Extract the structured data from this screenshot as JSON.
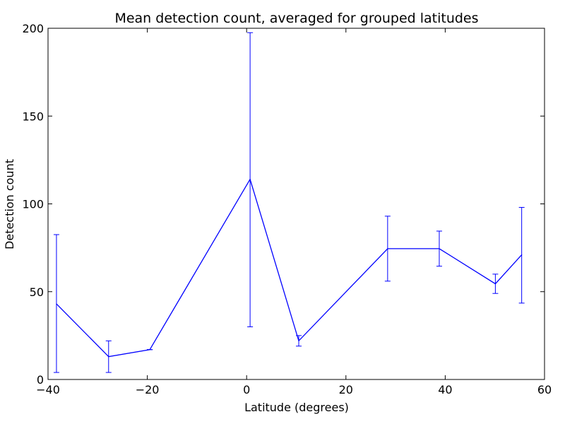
{
  "chart_data": {
    "type": "line",
    "title": "Mean detection count, averaged for grouped latitudes",
    "xlabel": "Latitude (degrees)",
    "ylabel": "Detection count",
    "xlim": [
      -40,
      60
    ],
    "ylim": [
      0,
      200
    ],
    "xticks": [
      -40,
      -20,
      0,
      20,
      40,
      60
    ],
    "xtick_labels": [
      "−40",
      "−20",
      "0",
      "20",
      "40",
      "60"
    ],
    "yticks": [
      0,
      50,
      100,
      150,
      200
    ],
    "ytick_labels": [
      "0",
      "50",
      "100",
      "150",
      "200"
    ],
    "grid": false,
    "legend": "none",
    "series": [
      {
        "color": "#0000ff",
        "x": [
          -38.3,
          -27.8,
          -19.5,
          0.7,
          10.5,
          28.4,
          38.8,
          50.1,
          55.4
        ],
        "y": [
          43,
          13,
          17,
          114,
          22,
          74.5,
          74.5,
          54.5,
          71
        ],
        "yerr_low": [
          4,
          4,
          17,
          30,
          19,
          56,
          64.5,
          49,
          43.5
        ],
        "yerr_high": [
          82.5,
          22,
          17,
          197.5,
          25,
          93,
          84.5,
          60,
          98
        ]
      }
    ]
  }
}
